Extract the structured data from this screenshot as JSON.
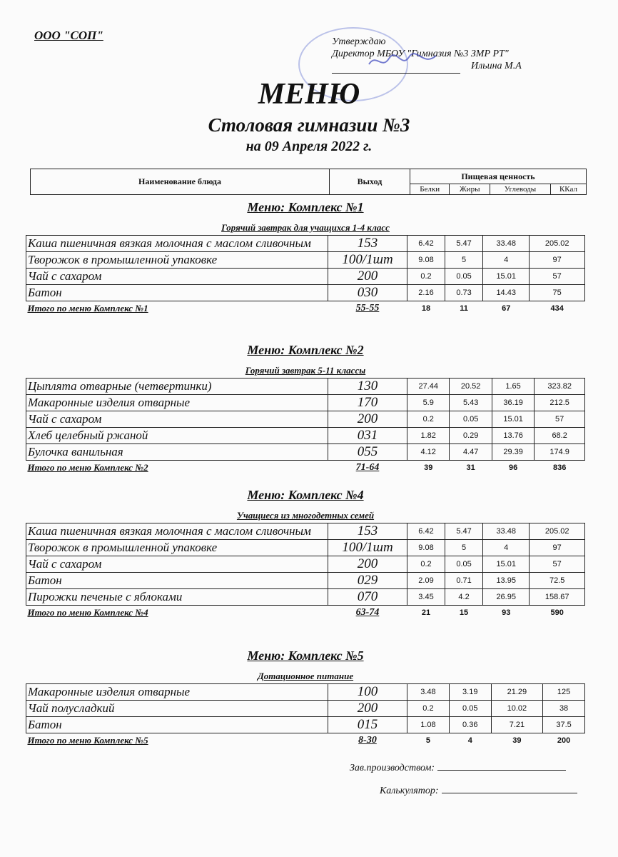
{
  "organization": "ООО \"СОП\"",
  "approval": {
    "line1": "Утверждаю",
    "line2": "Директор МБОУ \"Гимназия №3 ЗМР РТ\"",
    "line3": "Ильина М.А"
  },
  "title": "МЕНЮ",
  "subtitle": "Столовая гимназии №3",
  "date_line": "на 09 Апреля 2022 г.",
  "header": {
    "name": "Наименование блюда",
    "output": "Выход",
    "nutrition": "Пищевая ценность",
    "cols": [
      "Белки",
      "Жиры",
      "Углеводы",
      "ККал"
    ]
  },
  "sections": [
    {
      "title": "Меню: Комплекс №1",
      "subtitle": "Горячий завтрак для учащихся 1-4 класс",
      "rows": [
        [
          "Каша пшеничная вязкая молочная с маслом сливочным",
          "153",
          "6.42",
          "5.47",
          "33.48",
          "205.02"
        ],
        [
          "Творожок в промышленной упаковке",
          "100/1шт",
          "9.08",
          "5",
          "4",
          "97"
        ],
        [
          "Чай с сахаром",
          "200",
          "0.2",
          "0.05",
          "15.01",
          "57"
        ],
        [
          "Батон",
          "030",
          "2.16",
          "0.73",
          "14.43",
          "75"
        ]
      ],
      "total": [
        "Итого по меню Комплекс №1",
        "55-55",
        "18",
        "11",
        "67",
        "434"
      ]
    },
    {
      "title": "Меню: Комплекс №2",
      "subtitle": "Горячий завтрак 5-11 классы",
      "rows": [
        [
          "Цыплята отварные (четвертинки)",
          "130",
          "27.44",
          "20.52",
          "1.65",
          "323.82"
        ],
        [
          "Макаронные изделия отварные",
          "170",
          "5.9",
          "5.43",
          "36.19",
          "212.5"
        ],
        [
          "Чай с сахаром",
          "200",
          "0.2",
          "0.05",
          "15.01",
          "57"
        ],
        [
          "Хлеб  целебный ржаной",
          "031",
          "1.82",
          "0.29",
          "13.76",
          "68.2"
        ],
        [
          "Булочка ванильная",
          "055",
          "4.12",
          "4.47",
          "29.39",
          "174.9"
        ]
      ],
      "total": [
        "Итого по меню Комплекс №2",
        "71-64",
        "39",
        "31",
        "96",
        "836"
      ]
    },
    {
      "title": "Меню: Комплекс №4",
      "subtitle": "Учащиеся из многодетных семей",
      "rows": [
        [
          "Каша пшеничная вязкая молочная с маслом сливочным",
          "153",
          "6.42",
          "5.47",
          "33.48",
          "205.02"
        ],
        [
          "Творожок в промышленной упаковке",
          "100/1шт",
          "9.08",
          "5",
          "4",
          "97"
        ],
        [
          "Чай с сахаром",
          "200",
          "0.2",
          "0.05",
          "15.01",
          "57"
        ],
        [
          "Батон",
          "029",
          "2.09",
          "0.71",
          "13.95",
          "72.5"
        ],
        [
          "Пирожки печеные с яблоками",
          "070",
          "3.45",
          "4.2",
          "26.95",
          "158.67"
        ]
      ],
      "total": [
        "Итого по меню Комплекс №4",
        "63-74",
        "21",
        "15",
        "93",
        "590"
      ]
    },
    {
      "title": "Меню: Комплекс №5",
      "subtitle": "Дотационное питание",
      "rows": [
        [
          "Макаронные изделия отварные",
          "100",
          "3.48",
          "3.19",
          "21.29",
          "125"
        ],
        [
          "Чай полусладкий",
          "200",
          "0.2",
          "0.05",
          "10.02",
          "38"
        ],
        [
          "Батон",
          "015",
          "1.08",
          "0.36",
          "7.21",
          "37.5"
        ]
      ],
      "total": [
        "Итого по меню Комплекс №5",
        "8-30",
        "5",
        "4",
        "39",
        "200"
      ]
    }
  ],
  "signatures": {
    "production": "Зав.производством:",
    "calculator": "Калькулятор:"
  }
}
